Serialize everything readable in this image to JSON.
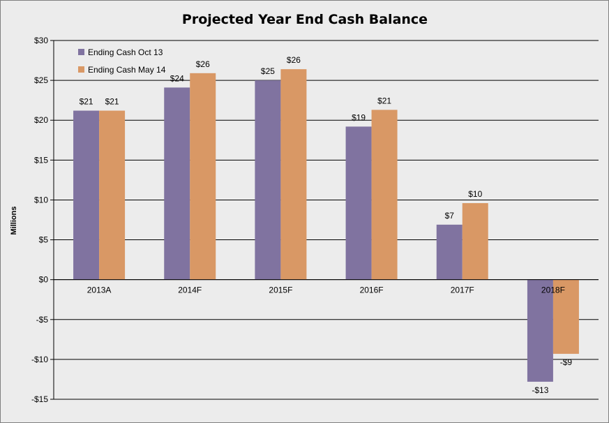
{
  "chart_data": {
    "type": "bar",
    "title": "Projected Year End Cash Balance",
    "xlabel": "",
    "ylabel": "Millions",
    "categories": [
      "2013A",
      "2014F",
      "2015F",
      "2016F",
      "2017F",
      "2018F"
    ],
    "series": [
      {
        "name": "Ending Cash Oct 13",
        "color": "#8073a0",
        "values": [
          21.2,
          24.1,
          25.0,
          19.2,
          6.9,
          -12.8
        ],
        "labels": [
          "$21",
          "$24",
          "$25",
          "$19",
          "$7",
          "-$13"
        ]
      },
      {
        "name": "Ending Cash  May 14",
        "color": "#d99865",
        "values": [
          21.2,
          25.9,
          26.4,
          21.3,
          9.6,
          -9.3
        ],
        "labels": [
          "$21",
          "$26",
          "$26",
          "$21",
          "$10",
          "-$9"
        ]
      }
    ],
    "ylim": [
      -15,
      30
    ],
    "yticks": [
      30,
      25,
      20,
      15,
      10,
      5,
      0,
      -5,
      -10,
      -15
    ],
    "ytick_labels": [
      "$30",
      "$25",
      "$20",
      "$15",
      "$10",
      "$5",
      "$0",
      "-$5",
      "-$10",
      "-$15"
    ],
    "grid": true,
    "legend_position": "top-left"
  }
}
